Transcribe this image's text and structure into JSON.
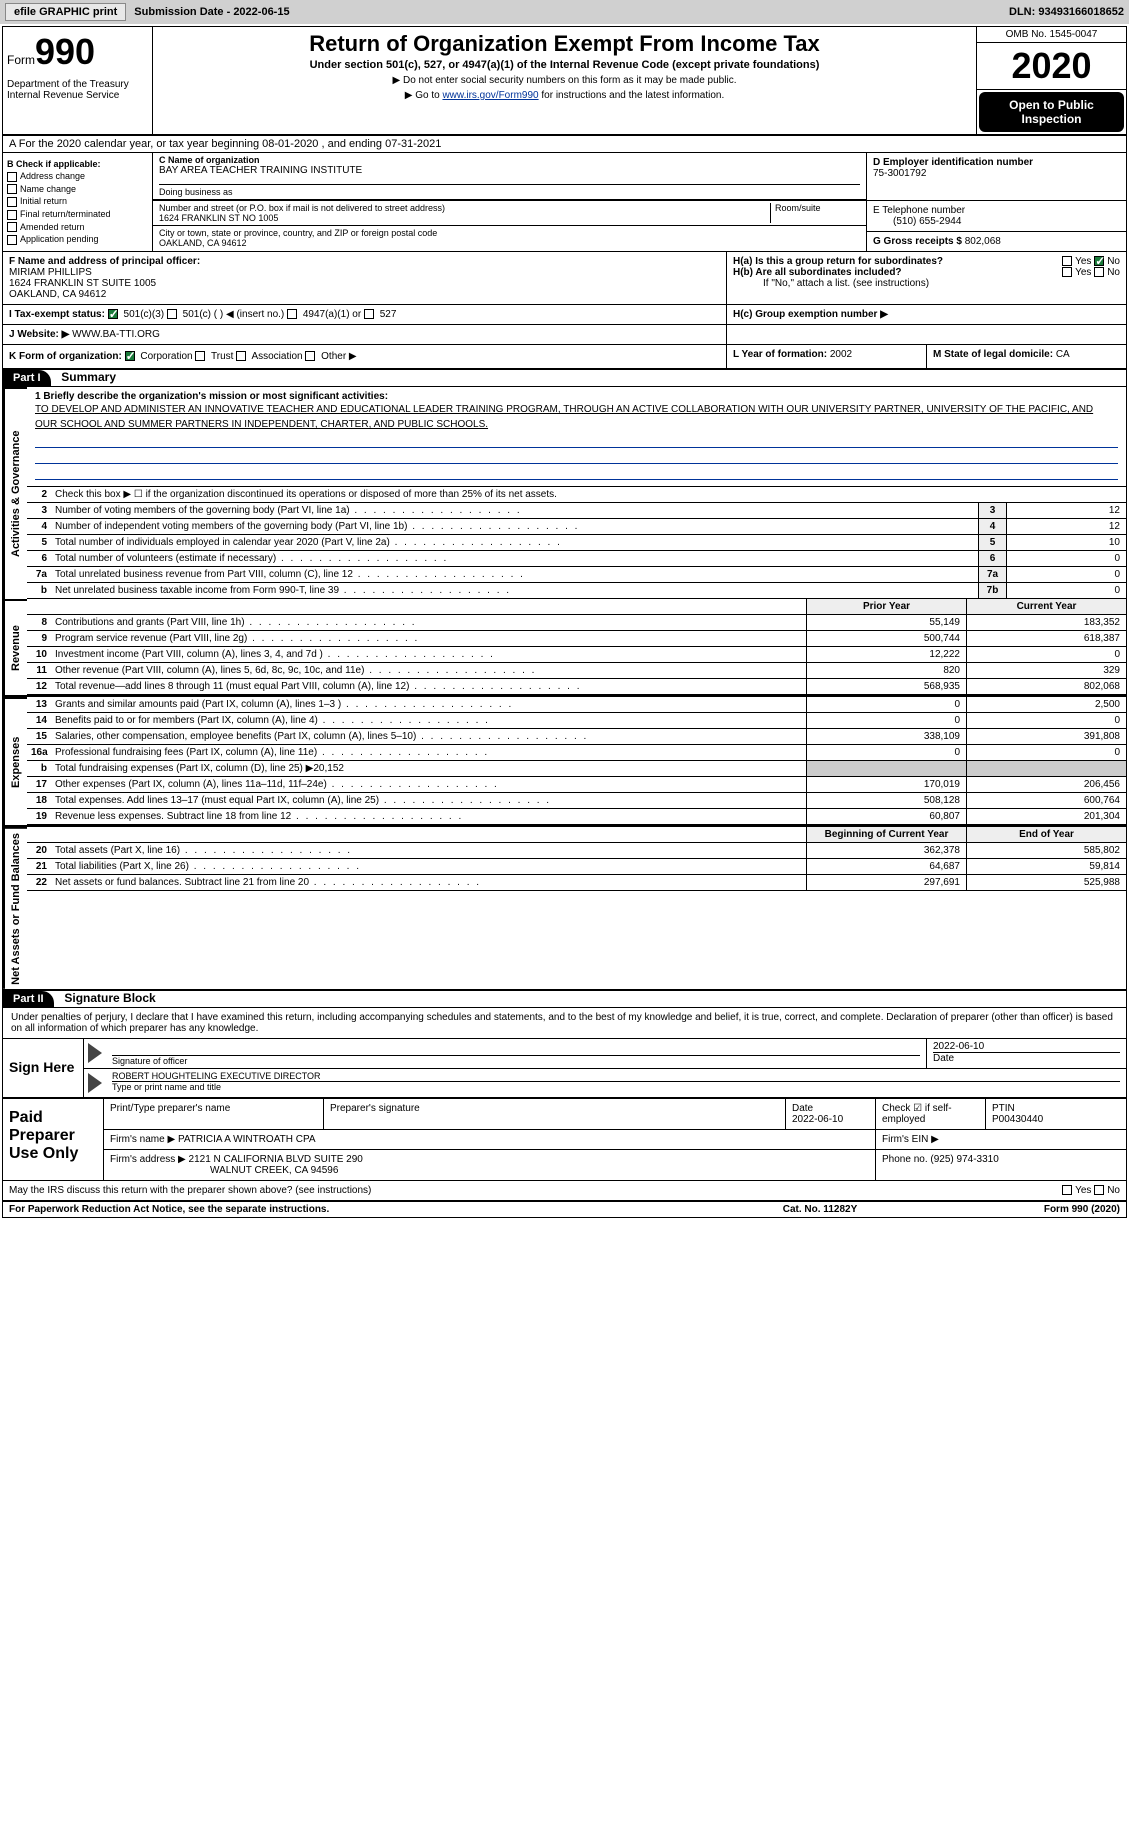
{
  "toolbar": {
    "efile": "efile GRAPHIC print",
    "sub_label": "Submission Date - 2022-06-15",
    "dln": "DLN: 93493166018652"
  },
  "header": {
    "form": "Form",
    "num": "990",
    "dept": "Department of the Treasury\nInternal Revenue Service",
    "title": "Return of Organization Exempt From Income Tax",
    "sub": "Under section 501(c), 527, or 4947(a)(1) of the Internal Revenue Code (except private foundations)",
    "note1": "▶ Do not enter social security numbers on this form as it may be made public.",
    "note2_pre": "▶ Go to ",
    "note2_link": "www.irs.gov/Form990",
    "note2_post": " for instructions and the latest information.",
    "omb": "OMB No. 1545-0047",
    "year": "2020",
    "open": "Open to Public Inspection"
  },
  "row_a": "A For the 2020 calendar year, or tax year beginning 08-01-2020    , and ending 07-31-2021",
  "col_b": {
    "title": "B Check if applicable:",
    "opts": [
      "Address change",
      "Name change",
      "Initial return",
      "Final return/terminated",
      "Amended return",
      "Application pending"
    ]
  },
  "name": {
    "lab_c": "C Name of organization",
    "org": "BAY AREA TEACHER TRAINING INSTITUTE",
    "dba_lab": "Doing business as",
    "dba": "",
    "street_lab": "Number and street (or P.O. box if mail is not delivered to street address)",
    "room_lab": "Room/suite",
    "street": "1624 FRANKLIN ST NO 1005",
    "city_lab": "City or town, state or province, country, and ZIP or foreign postal code",
    "city": "OAKLAND, CA  94612"
  },
  "col_d": {
    "ein_lab": "D Employer identification number",
    "ein": "75-3001792",
    "phone_lab": "E Telephone number",
    "phone": "(510) 655-2944",
    "gross_lab": "G Gross receipts $",
    "gross": "802,068"
  },
  "officer": {
    "lab": "F  Name and address of principal officer:",
    "name": "MIRIAM PHILLIPS",
    "addr1": "1624 FRANKLIN ST SUITE 1005",
    "addr2": "OAKLAND, CA  94612"
  },
  "h": {
    "a": "H(a)  Is this a group return for subordinates?",
    "b": "H(b)  Are all subordinates included?",
    "b_note": "If \"No,\" attach a list. (see instructions)",
    "c": "H(c)  Group exemption number ▶",
    "yes": "Yes",
    "no": "No"
  },
  "status": {
    "lab": "I  Tax-exempt status:",
    "o1": "501(c)(3)",
    "o2": "501(c) (  ) ◀ (insert no.)",
    "o3": "4947(a)(1) or",
    "o4": "527"
  },
  "web": {
    "lab": "J Website: ▶",
    "val": "WWW.BA-TTI.ORG"
  },
  "k": {
    "lab": "K Form of organization:",
    "o1": "Corporation",
    "o2": "Trust",
    "o3": "Association",
    "o4": "Other ▶"
  },
  "l": {
    "lab": "L Year of formation:",
    "val": "2002"
  },
  "m": {
    "lab": "M State of legal domicile:",
    "val": "CA"
  },
  "part1": {
    "num": "Part I",
    "title": "Summary"
  },
  "mission": {
    "lab": "1  Briefly describe the organization's mission or most significant activities:",
    "txt": "TO DEVELOP AND ADMINISTER AN INNOVATIVE TEACHER AND EDUCATIONAL LEADER TRAINING PROGRAM, THROUGH AN ACTIVE COLLABORATION WITH OUR UNIVERSITY PARTNER, UNIVERSITY OF THE PACIFIC, AND OUR SCHOOL AND SUMMER PARTNERS IN INDEPENDENT, CHARTER, AND PUBLIC SCHOOLS."
  },
  "gov_lines": [
    {
      "n": "2",
      "d": "Check this box ▶ ☐  if the organization discontinued its operations or disposed of more than 25% of its net assets.",
      "nb": "",
      "v": ""
    },
    {
      "n": "3",
      "d": "Number of voting members of the governing body (Part VI, line 1a)",
      "nb": "3",
      "v": "12"
    },
    {
      "n": "4",
      "d": "Number of independent voting members of the governing body (Part VI, line 1b)",
      "nb": "4",
      "v": "12"
    },
    {
      "n": "5",
      "d": "Total number of individuals employed in calendar year 2020 (Part V, line 2a)",
      "nb": "5",
      "v": "10"
    },
    {
      "n": "6",
      "d": "Total number of volunteers (estimate if necessary)",
      "nb": "6",
      "v": "0"
    },
    {
      "n": "7a",
      "d": "Total unrelated business revenue from Part VIII, column (C), line 12",
      "nb": "7a",
      "v": "0"
    },
    {
      "n": "b",
      "d": "Net unrelated business taxable income from Form 990-T, line 39",
      "nb": "7b",
      "v": "0"
    }
  ],
  "col_hdrs": {
    "py": "Prior Year",
    "cy": "Current Year"
  },
  "rev_lines": [
    {
      "n": "8",
      "d": "Contributions and grants (Part VIII, line 1h)",
      "py": "55,149",
      "cy": "183,352"
    },
    {
      "n": "9",
      "d": "Program service revenue (Part VIII, line 2g)",
      "py": "500,744",
      "cy": "618,387"
    },
    {
      "n": "10",
      "d": "Investment income (Part VIII, column (A), lines 3, 4, and 7d )",
      "py": "12,222",
      "cy": "0"
    },
    {
      "n": "11",
      "d": "Other revenue (Part VIII, column (A), lines 5, 6d, 8c, 9c, 10c, and 11e)",
      "py": "820",
      "cy": "329"
    },
    {
      "n": "12",
      "d": "Total revenue—add lines 8 through 11 (must equal Part VIII, column (A), line 12)",
      "py": "568,935",
      "cy": "802,068"
    }
  ],
  "exp_lines": [
    {
      "n": "13",
      "d": "Grants and similar amounts paid (Part IX, column (A), lines 1–3 )",
      "py": "0",
      "cy": "2,500"
    },
    {
      "n": "14",
      "d": "Benefits paid to or for members (Part IX, column (A), line 4)",
      "py": "0",
      "cy": "0"
    },
    {
      "n": "15",
      "d": "Salaries, other compensation, employee benefits (Part IX, column (A), lines 5–10)",
      "py": "338,109",
      "cy": "391,808"
    },
    {
      "n": "16a",
      "d": "Professional fundraising fees (Part IX, column (A), line 11e)",
      "py": "0",
      "cy": "0"
    },
    {
      "n": "b",
      "d": "Total fundraising expenses (Part IX, column (D), line 25) ▶20,152",
      "py": "",
      "cy": ""
    },
    {
      "n": "17",
      "d": "Other expenses (Part IX, column (A), lines 11a–11d, 11f–24e)",
      "py": "170,019",
      "cy": "206,456"
    },
    {
      "n": "18",
      "d": "Total expenses. Add lines 13–17 (must equal Part IX, column (A), line 25)",
      "py": "508,128",
      "cy": "600,764"
    },
    {
      "n": "19",
      "d": "Revenue less expenses. Subtract line 18 from line 12",
      "py": "60,807",
      "cy": "201,304"
    }
  ],
  "net_hdrs": {
    "boy": "Beginning of Current Year",
    "eoy": "End of Year"
  },
  "net_lines": [
    {
      "n": "20",
      "d": "Total assets (Part X, line 16)",
      "py": "362,378",
      "cy": "585,802"
    },
    {
      "n": "21",
      "d": "Total liabilities (Part X, line 26)",
      "py": "64,687",
      "cy": "59,814"
    },
    {
      "n": "22",
      "d": "Net assets or fund balances. Subtract line 21 from line 20",
      "py": "297,691",
      "cy": "525,988"
    }
  ],
  "side_tabs": {
    "gov": "Activities & Governance",
    "rev": "Revenue",
    "exp": "Expenses",
    "net": "Net Assets or Fund Balances"
  },
  "part2": {
    "num": "Part II",
    "title": "Signature Block"
  },
  "sig_intro": "Under penalties of perjury, I declare that I have examined this return, including accompanying schedules and statements, and to the best of my knowledge and belief, it is true, correct, and complete. Declaration of preparer (other than officer) is based on all information of which preparer has any knowledge.",
  "sign": {
    "here": "Sign Here",
    "sig_lab": "Signature of officer",
    "date": "2022-06-10",
    "date_lab": "Date",
    "name": "ROBERT HOUGHTELING  EXECUTIVE DIRECTOR",
    "name_lab": "Type or print name and title"
  },
  "paid": {
    "lab": "Paid Preparer Use Only",
    "prep_name_lab": "Print/Type preparer's name",
    "prep_sig_lab": "Preparer's signature",
    "date_lab": "Date",
    "date": "2022-06-10",
    "self_lab": "Check ☑ if self-employed",
    "ptin_lab": "PTIN",
    "ptin": "P00430440",
    "firm_name_lab": "Firm's name    ▶",
    "firm_name": "PATRICIA A WINTROATH CPA",
    "firm_ein_lab": "Firm's EIN ▶",
    "firm_addr_lab": "Firm's address ▶",
    "firm_addr1": "2121 N CALIFORNIA BLVD SUITE 290",
    "firm_addr2": "WALNUT CREEK, CA  94596",
    "phone_lab": "Phone no.",
    "phone": "(925) 974-3310"
  },
  "may": {
    "txt": "May the IRS discuss this return with the preparer shown above? (see instructions)",
    "yes": "Yes",
    "no": "No"
  },
  "footer": {
    "f1": "For Paperwork Reduction Act Notice, see the separate instructions.",
    "f2": "Cat. No. 11282Y",
    "f3": "Form 990 (2020)"
  }
}
